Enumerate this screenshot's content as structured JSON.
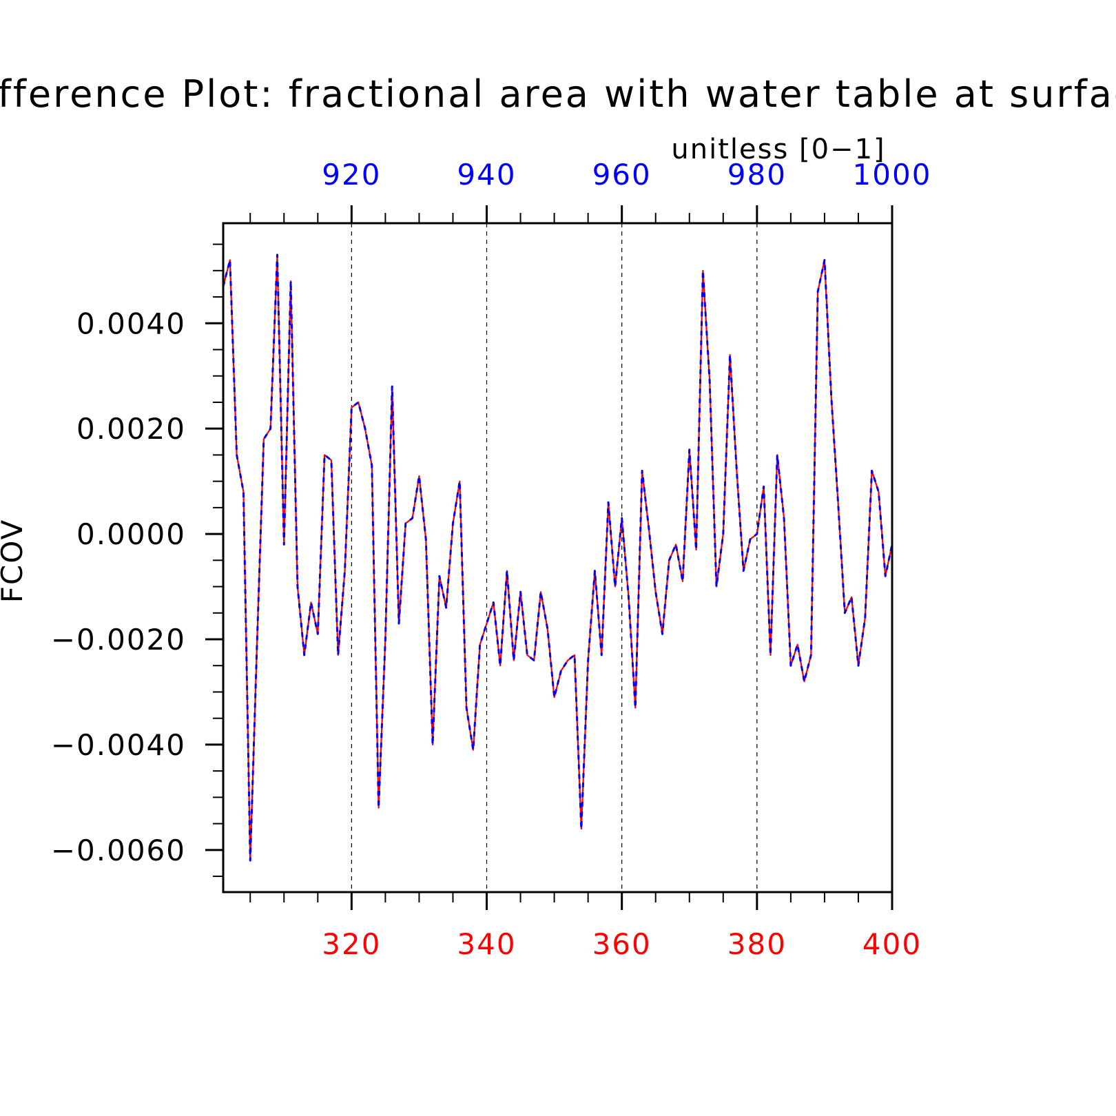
{
  "chart_data": {
    "type": "line",
    "title": "Difference Plot: fractional area with water table at surface",
    "subtitle": "unitless [0−1]",
    "ylabel": "FCOV",
    "xlabel": "",
    "xlim": [
      301,
      400
    ],
    "ylim": [
      -0.0068,
      0.0059
    ],
    "top_axis_offset": 600,
    "bottom_ticks": [
      {
        "value": 320,
        "label": "320"
      },
      {
        "value": 340,
        "label": "340"
      },
      {
        "value": 360,
        "label": "360"
      },
      {
        "value": 380,
        "label": "380"
      },
      {
        "value": 400,
        "label": "400"
      }
    ],
    "top_ticks": [
      {
        "value": 320,
        "label": "920"
      },
      {
        "value": 340,
        "label": "940"
      },
      {
        "value": 360,
        "label": "960"
      },
      {
        "value": 380,
        "label": "980"
      },
      {
        "value": 400,
        "label": "1000"
      }
    ],
    "y_ticks": [
      {
        "value": 0.004,
        "label": "0.0040"
      },
      {
        "value": 0.002,
        "label": "0.0020"
      },
      {
        "value": 0.0,
        "label": "0.0000"
      },
      {
        "value": -0.002,
        "label": "−0.0020"
      },
      {
        "value": -0.004,
        "label": "−0.0040"
      },
      {
        "value": -0.006,
        "label": "−0.0060"
      }
    ],
    "grid": "vertical dashed at major x ticks",
    "colors": {
      "bottom_axis": "#ff0000",
      "top_axis": "#0000ff",
      "series_1": "#ff0000",
      "series_2": "#0000ff"
    },
    "x": [
      301,
      302,
      303,
      304,
      305,
      306,
      307,
      308,
      309,
      310,
      311,
      312,
      313,
      314,
      315,
      316,
      317,
      318,
      319,
      320,
      321,
      322,
      323,
      324,
      325,
      326,
      327,
      328,
      329,
      330,
      331,
      332,
      333,
      334,
      335,
      336,
      337,
      338,
      339,
      340,
      341,
      342,
      343,
      344,
      345,
      346,
      347,
      348,
      349,
      350,
      351,
      352,
      353,
      354,
      355,
      356,
      357,
      358,
      359,
      360,
      361,
      362,
      363,
      364,
      365,
      366,
      367,
      368,
      369,
      370,
      371,
      372,
      373,
      374,
      375,
      376,
      377,
      378,
      379,
      380,
      381,
      382,
      383,
      384,
      385,
      386,
      387,
      388,
      389,
      390,
      391,
      392,
      393,
      394,
      395,
      396,
      397,
      398,
      399,
      400
    ],
    "series": [
      {
        "values": [
          0.0047,
          0.0052,
          0.0015,
          0.0008,
          -0.0062,
          -0.0021,
          0.0018,
          0.002,
          0.0053,
          -0.0002,
          0.0048,
          -0.001,
          -0.0023,
          -0.0013,
          -0.0019,
          0.0015,
          0.0014,
          -0.0023,
          -0.0007,
          0.0024,
          0.0025,
          0.002,
          0.0013,
          -0.0052,
          -0.002,
          0.0028,
          -0.0017,
          0.0002,
          0.0003,
          0.0011,
          -0.0001,
          -0.004,
          -0.0008,
          -0.0014,
          0.0002,
          0.001,
          -0.0033,
          -0.0041,
          -0.0021,
          -0.0017,
          -0.0013,
          -0.0025,
          -0.0007,
          -0.0024,
          -0.0011,
          -0.0023,
          -0.0024,
          -0.0011,
          -0.0018,
          -0.0031,
          -0.0026,
          -0.0024,
          -0.0023,
          -0.0056,
          -0.0024,
          -0.0007,
          -0.0023,
          0.0006,
          -0.001,
          0.0003,
          -0.0012,
          -0.0033,
          0.0012,
          0.0001,
          -0.0011,
          -0.0019,
          -0.0005,
          -0.0002,
          -0.0009,
          0.0016,
          -0.0003,
          0.005,
          0.0029,
          -0.001,
          0.0,
          0.0034,
          0.0012,
          -0.0007,
          -0.0001,
          0.0,
          0.0009,
          -0.0023,
          0.0015,
          0.0003,
          -0.0025,
          -0.0021,
          -0.0028,
          -0.0023,
          0.0046,
          0.0052,
          0.0026,
          0.0006,
          -0.0015,
          -0.0012,
          -0.0025,
          -0.0016,
          0.0012,
          0.0008,
          -0.0008,
          -0.0002
        ]
      },
      {
        "values": [
          0.0047,
          0.0052,
          0.0015,
          0.0008,
          -0.0062,
          -0.0021,
          0.0018,
          0.002,
          0.0053,
          -0.0002,
          0.0048,
          -0.001,
          -0.0023,
          -0.0013,
          -0.0019,
          0.0015,
          0.0014,
          -0.0023,
          -0.0007,
          0.0024,
          0.0025,
          0.002,
          0.0013,
          -0.0052,
          -0.002,
          0.0028,
          -0.0017,
          0.0002,
          0.0003,
          0.0011,
          -0.0001,
          -0.004,
          -0.0008,
          -0.0014,
          0.0002,
          0.001,
          -0.0033,
          -0.0041,
          -0.0021,
          -0.0017,
          -0.0013,
          -0.0025,
          -0.0007,
          -0.0024,
          -0.0011,
          -0.0023,
          -0.0024,
          -0.0011,
          -0.0018,
          -0.0031,
          -0.0026,
          -0.0024,
          -0.0023,
          -0.0056,
          -0.0024,
          -0.0007,
          -0.0023,
          0.0006,
          -0.001,
          0.0003,
          -0.0012,
          -0.0033,
          0.0012,
          0.0001,
          -0.0011,
          -0.0019,
          -0.0005,
          -0.0002,
          -0.0009,
          0.0016,
          -0.0003,
          0.005,
          0.0029,
          -0.001,
          0.0,
          0.0034,
          0.0012,
          -0.0007,
          -0.0001,
          0.0,
          0.0009,
          -0.0023,
          0.0015,
          0.0003,
          -0.0025,
          -0.0021,
          -0.0028,
          -0.0023,
          0.0046,
          0.0052,
          0.0026,
          0.0006,
          -0.0015,
          -0.0012,
          -0.0025,
          -0.0016,
          0.0012,
          0.0008,
          -0.0008,
          -0.0002
        ]
      }
    ]
  }
}
